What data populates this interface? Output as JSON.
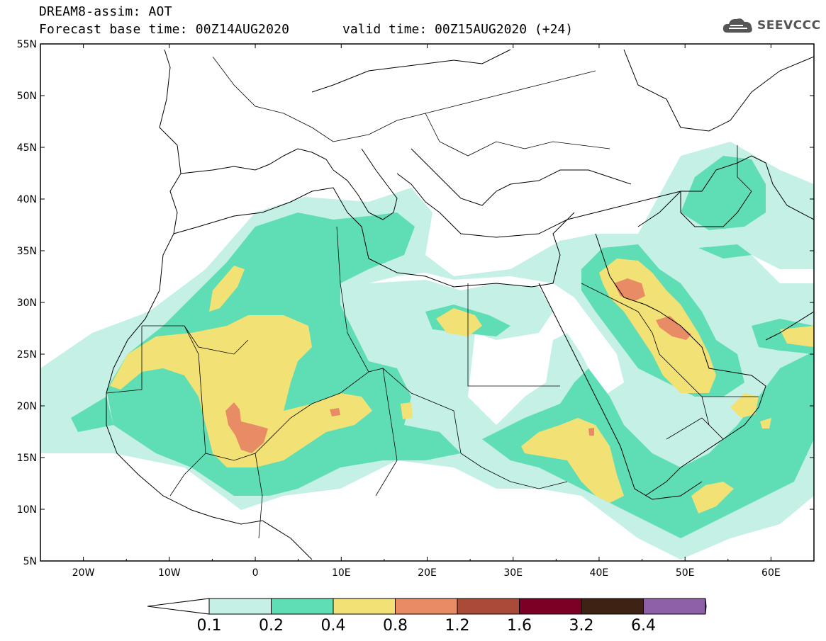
{
  "header": {
    "title": "DREAM8-assim: AOT",
    "base_time": "Forecast base time: 00Z14AUG2020",
    "valid_time": "valid time: 00Z15AUG2020 (+24)"
  },
  "logo": {
    "text": "SEEVCCC",
    "icon": "cloud-icon"
  },
  "map": {
    "lon_range": [
      -25,
      65
    ],
    "lat_range": [
      5,
      55
    ],
    "lat_labels": [
      "55N",
      "50N",
      "45N",
      "40N",
      "35N",
      "30N",
      "25N",
      "20N",
      "15N",
      "10N",
      "5N"
    ],
    "lon_labels": [
      "20W",
      "10W",
      "0",
      "10E",
      "20E",
      "30E",
      "40E",
      "50E",
      "60E"
    ]
  },
  "colorbar": {
    "levels": [
      "0.1",
      "0.2",
      "0.4",
      "0.8",
      "1.2",
      "1.6",
      "3.2",
      "6.4"
    ],
    "colors": [
      "#ffffff",
      "#c5f0e6",
      "#5fddb4",
      "#f2e276",
      "#e78c65",
      "#aa4a38",
      "#7b0026",
      "#3e2314",
      "#8e60a8"
    ]
  }
}
